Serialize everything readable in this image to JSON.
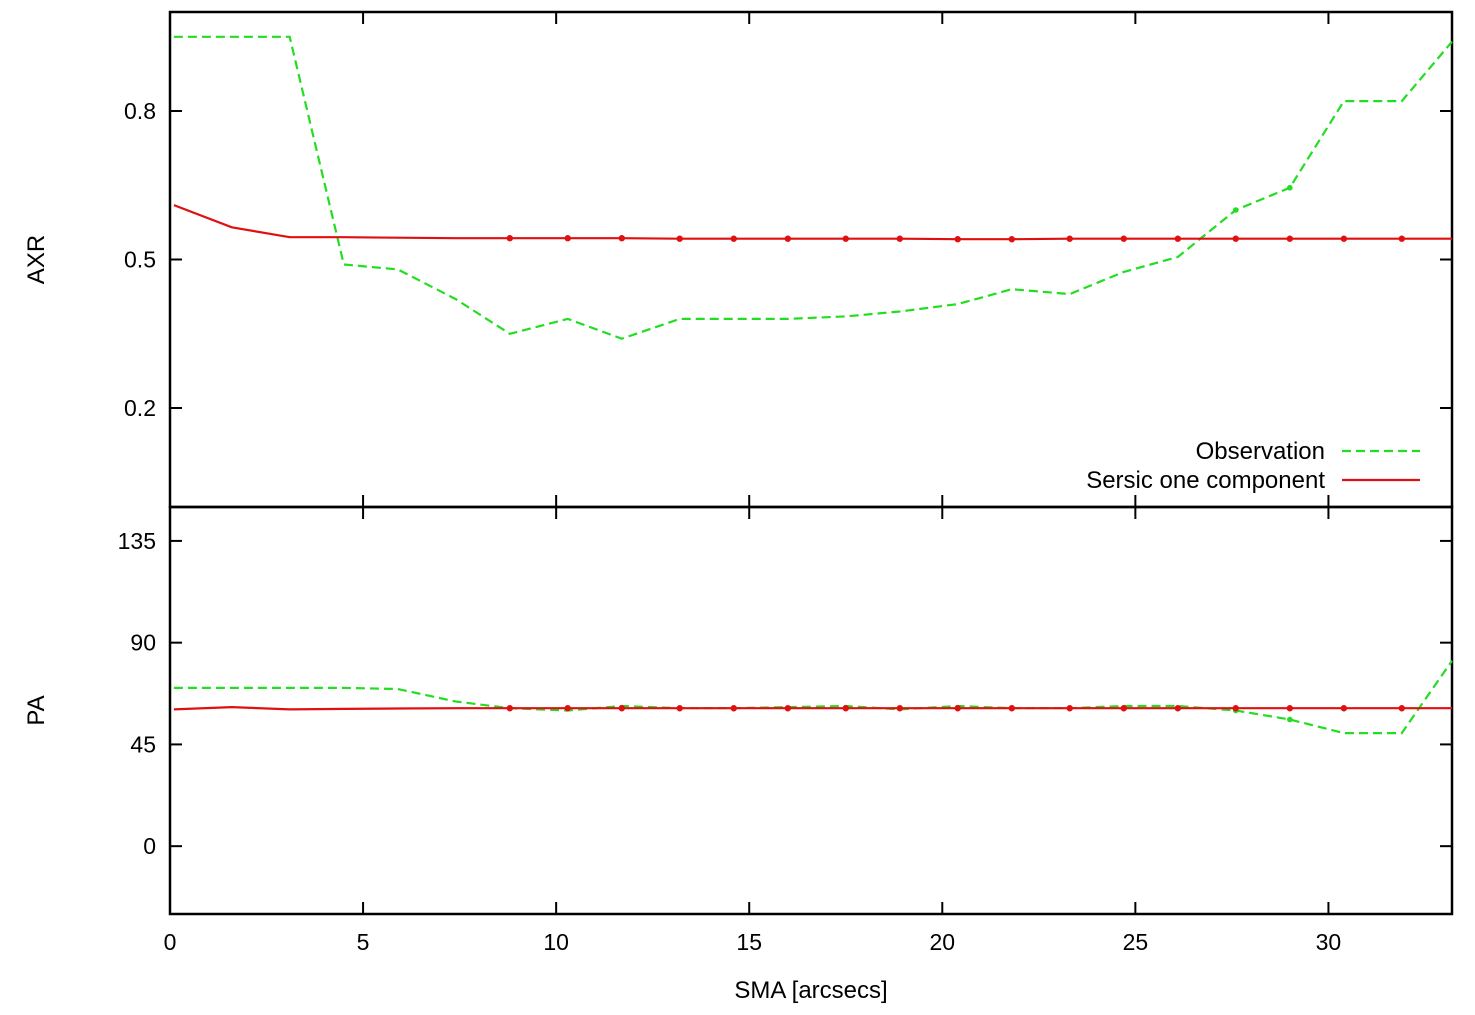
{
  "chart_data": [
    {
      "type": "line",
      "panel": "top",
      "ylabel": "AXR",
      "xlim": [
        0,
        33.2
      ],
      "ylim": [
        0.0,
        1.0
      ],
      "yticks": [
        0.2,
        0.5,
        0.8
      ],
      "ytick_labels": [
        "0.2",
        "0.5",
        "0.8"
      ],
      "legend_placement": "bottom-right",
      "series": [
        {
          "name": "Observation",
          "color": "#22dd22",
          "style": "dashed",
          "x": [
            0.1,
            3.1,
            4.5,
            5.9,
            7.4,
            8.8,
            10.3,
            11.7,
            13.2,
            14.6,
            16.0,
            17.5,
            18.9,
            20.4,
            21.8,
            23.3,
            24.7,
            26.1,
            27.6,
            29.0,
            30.4,
            31.9,
            33.2
          ],
          "y": [
            0.95,
            0.95,
            0.49,
            0.48,
            0.42,
            0.35,
            0.38,
            0.34,
            0.38,
            0.38,
            0.38,
            0.385,
            0.395,
            0.41,
            0.44,
            0.43,
            0.475,
            0.505,
            0.6,
            0.645,
            0.82,
            0.82,
            0.94
          ]
        },
        {
          "name": "Sersic one component",
          "color": "#e01010",
          "style": "solid",
          "x": [
            0.1,
            1.6,
            3.1,
            4.5,
            5.9,
            7.4,
            8.8,
            10.3,
            11.7,
            13.2,
            14.6,
            16.0,
            17.5,
            18.9,
            20.4,
            21.8,
            23.3,
            24.7,
            26.1,
            27.6,
            29.0,
            30.4,
            31.9,
            33.2
          ],
          "y": [
            0.61,
            0.565,
            0.545,
            0.545,
            0.544,
            0.543,
            0.543,
            0.543,
            0.543,
            0.542,
            0.542,
            0.542,
            0.542,
            0.542,
            0.541,
            0.541,
            0.542,
            0.542,
            0.542,
            0.542,
            0.542,
            0.542,
            0.542,
            0.542
          ]
        }
      ]
    },
    {
      "type": "line",
      "panel": "bottom",
      "xlabel": "SMA [arcsecs]",
      "ylabel": "PA",
      "xlim": [
        0,
        33.2
      ],
      "ylim": [
        -30,
        150
      ],
      "xticks": [
        0,
        5,
        10,
        15,
        20,
        25,
        30
      ],
      "xtick_labels": [
        "0",
        "5",
        "10",
        "15",
        "20",
        "25",
        "30"
      ],
      "yticks": [
        0,
        45,
        90,
        135
      ],
      "ytick_labels": [
        "0",
        "45",
        "90",
        "135"
      ],
      "series": [
        {
          "name": "Observation",
          "color": "#22dd22",
          "style": "dashed",
          "x": [
            0.1,
            1.6,
            3.1,
            4.5,
            5.9,
            7.4,
            8.8,
            10.3,
            11.7,
            13.2,
            14.6,
            16.0,
            17.5,
            18.9,
            20.4,
            21.8,
            23.3,
            24.7,
            26.1,
            27.6,
            29.0,
            30.4,
            31.9,
            33.2
          ],
          "y": [
            70,
            70,
            70,
            70,
            69.5,
            64,
            61,
            60,
            62,
            61,
            61,
            61.5,
            62,
            60.5,
            62,
            61,
            61,
            62,
            62,
            60,
            56,
            50,
            50,
            82
          ]
        },
        {
          "name": "Sersic one component",
          "color": "#e01010",
          "style": "solid",
          "x": [
            0.1,
            1.6,
            3.1,
            4.5,
            5.9,
            7.4,
            8.8,
            10.3,
            11.7,
            13.2,
            14.6,
            16.0,
            17.5,
            18.9,
            20.4,
            21.8,
            23.3,
            24.7,
            26.1,
            27.6,
            29.0,
            30.4,
            31.9,
            33.2
          ],
          "y": [
            60.5,
            61.5,
            60.5,
            60.7,
            60.9,
            61,
            61,
            61,
            61,
            61,
            61,
            61,
            61,
            61,
            61,
            61,
            61,
            61,
            61,
            61,
            61,
            61,
            61,
            61
          ]
        }
      ]
    }
  ],
  "legend": {
    "items": [
      {
        "label": "Observation",
        "color": "#22dd22",
        "style": "dashed"
      },
      {
        "label": "Sersic one component",
        "color": "#e01010",
        "style": "solid"
      }
    ]
  }
}
